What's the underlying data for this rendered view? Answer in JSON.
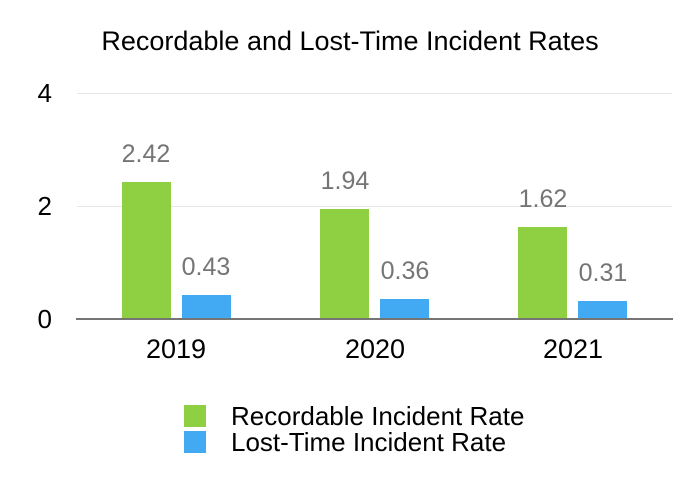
{
  "title": "Recordable and Lost-Time Incident Rates",
  "chart_data": {
    "type": "bar",
    "title": "Recordable and Lost-Time Incident Rates",
    "categories": [
      "2019",
      "2020",
      "2021"
    ],
    "series": [
      {
        "name": "Recordable Incident Rate",
        "color": "#8FD043",
        "values": [
          2.42,
          1.94,
          1.62
        ],
        "labels": [
          "2.42",
          "1.94",
          "1.62"
        ]
      },
      {
        "name": "Lost-Time Incident Rate",
        "color": "#41AAF2",
        "values": [
          0.43,
          0.36,
          0.31
        ],
        "labels": [
          "0.43",
          "0.36",
          "0.31"
        ]
      }
    ],
    "yticks": [
      0,
      2,
      4
    ],
    "ylim": [
      0,
      4
    ],
    "grid": true,
    "legend_position": "bottom-left",
    "data_labels": true
  },
  "colors": {
    "recordable_green": "#8FD043",
    "lost_time_blue": "#41AAF2",
    "data_label_gray": "#757575",
    "gridline_gray": "#E6E6E6",
    "axis_line_gray": "#757575",
    "text_black": "#000000",
    "background": "#FFFFFF"
  }
}
